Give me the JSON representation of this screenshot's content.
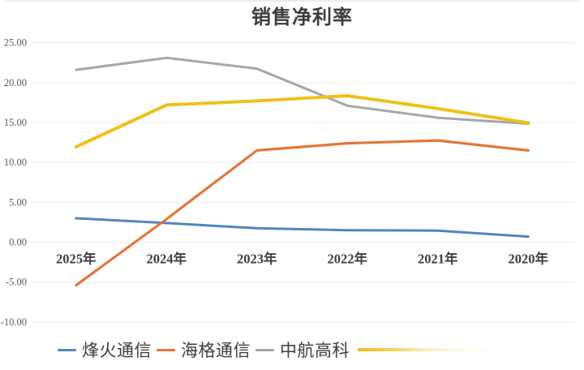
{
  "title": "销售净利率",
  "chart_data": {
    "type": "line",
    "title": "销售净利率",
    "categories": [
      "2025年",
      "2024年",
      "2023年",
      "2022年",
      "2021年",
      "2020年"
    ],
    "series": [
      {
        "name": "烽火通信",
        "color": "#4f86c0",
        "width": 3,
        "values": [
          3.0,
          2.4,
          1.75,
          1.5,
          1.45,
          0.7
        ]
      },
      {
        "name": "海格通信",
        "color": "#e2773a",
        "width": 3.2,
        "values": [
          -5.4,
          2.9,
          11.5,
          12.4,
          12.75,
          11.5
        ]
      },
      {
        "name": "中航高科",
        "color": "#a6a6a6",
        "width": 3,
        "values": [
          21.6,
          23.1,
          21.75,
          17.1,
          15.6,
          14.85
        ]
      },
      {
        "name": "",
        "color": "#efc01a",
        "width": 4,
        "values": [
          11.95,
          17.2,
          17.7,
          18.35,
          16.75,
          14.95
        ],
        "legend_label_visible": false
      }
    ],
    "yticks": [
      {
        "value": 25,
        "label": "25.00"
      },
      {
        "value": 20,
        "label": "20.00"
      },
      {
        "value": 15,
        "label": "15.00"
      },
      {
        "value": 10,
        "label": "10.00"
      },
      {
        "value": 5,
        "label": "5.00"
      },
      {
        "value": 0,
        "label": "0.00"
      },
      {
        "value": -5,
        "label": "-5.00"
      },
      {
        "value": -10,
        "label": "-10.00"
      }
    ],
    "ylim": [
      -10,
      25
    ],
    "grid": true,
    "legend_position": "bottom",
    "colors": {
      "grid": "#e9e9e9",
      "ytick_text": "#595959",
      "xtick_text": "#3f3f3f",
      "title_text": "#3c3c3c",
      "background": "#ffffff"
    }
  }
}
